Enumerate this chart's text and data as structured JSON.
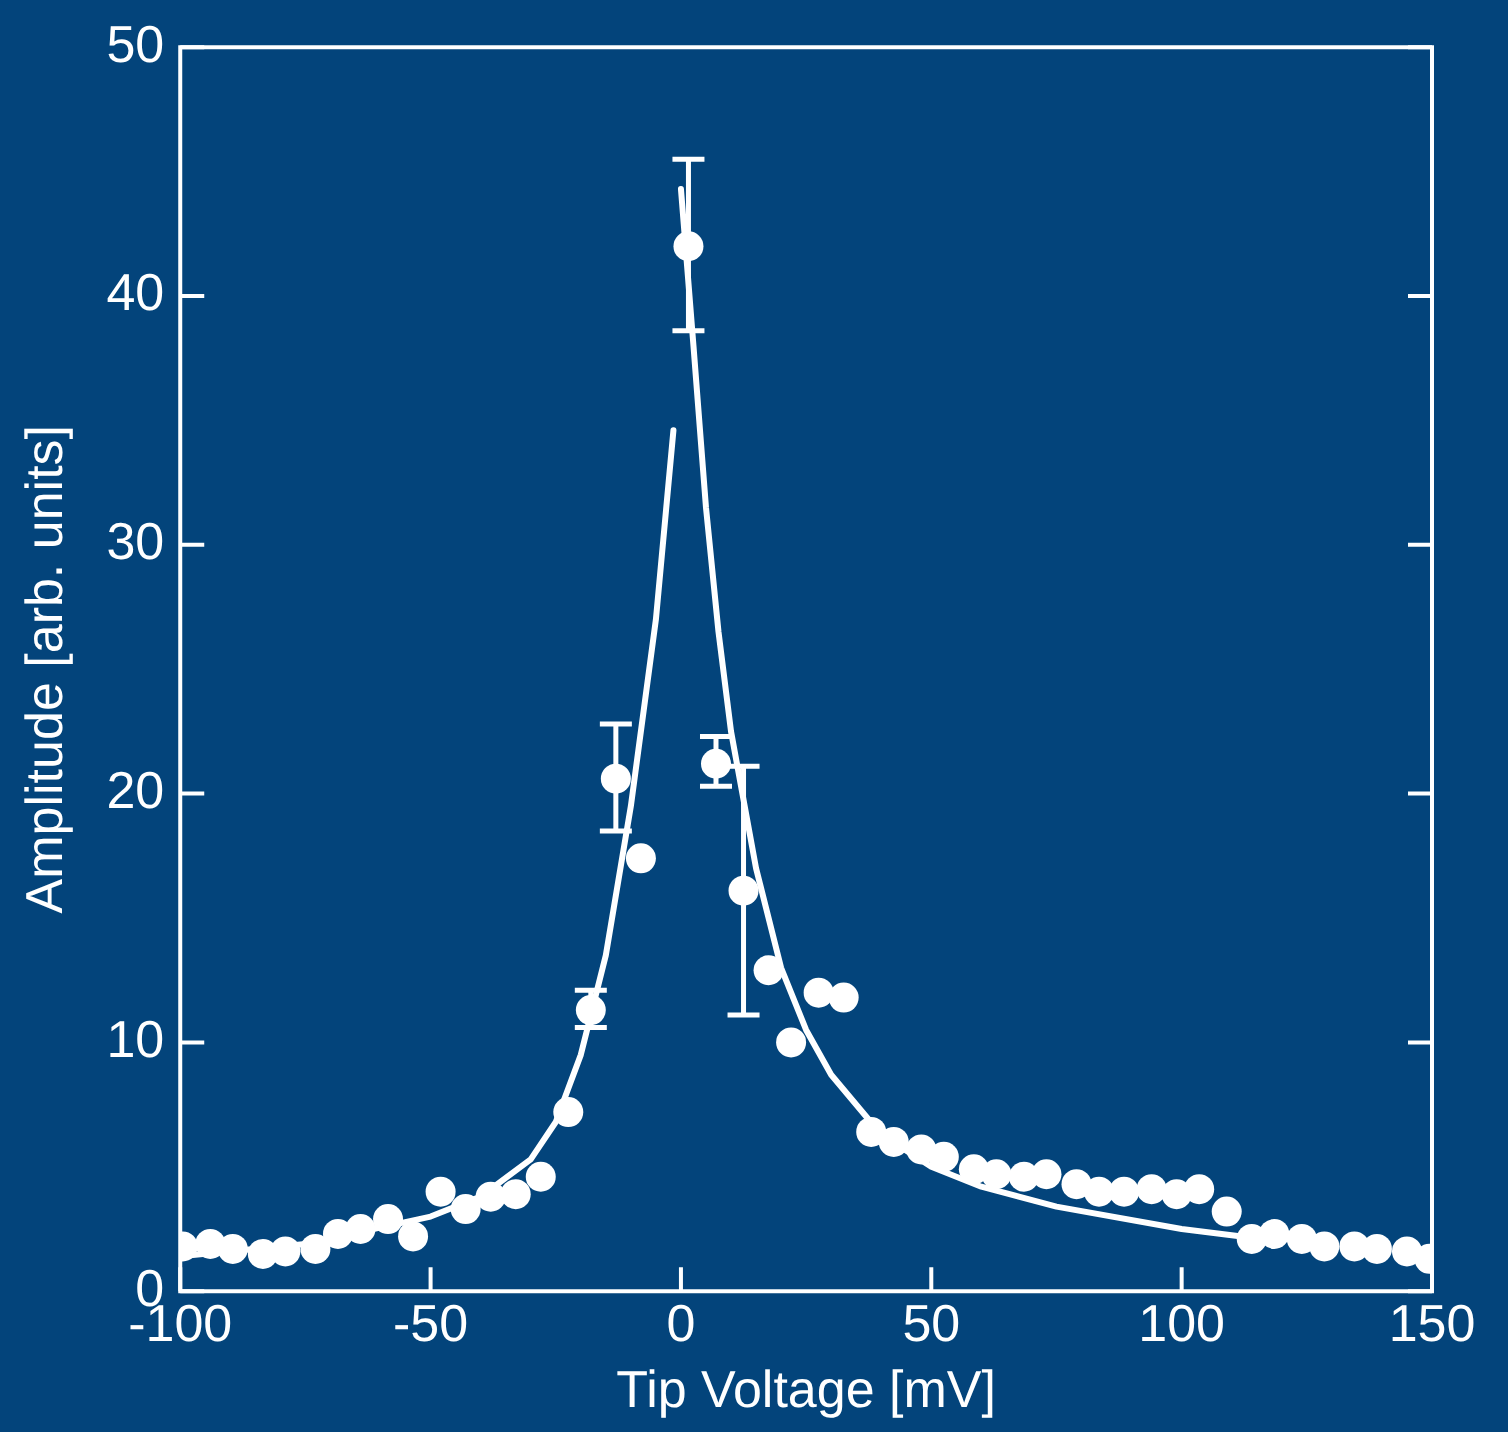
{
  "chart_data": {
    "type": "scatter",
    "xlabel": "Tip Voltage [mV]",
    "ylabel": "Amplitude [arb. units]",
    "xlim": [
      -100,
      150
    ],
    "xticks": [
      -100,
      -50,
      0,
      50,
      100,
      150
    ],
    "ylim": [
      0,
      50
    ],
    "yticks": [
      0,
      10,
      20,
      30,
      40,
      50
    ],
    "grid": false,
    "legend": false,
    "marker": "circle",
    "series": [
      {
        "color": "#ffffff",
        "x": [
          -99.5,
          -94,
          -89.5,
          -83.5,
          -79,
          -73,
          -68.5,
          -64,
          -58.5,
          -53.5,
          -48,
          -43,
          -38,
          -33,
          -28,
          -22.5,
          -18,
          -13,
          -8,
          1.5,
          7,
          12.5,
          17.5,
          22,
          27.5,
          32.5,
          38,
          42.5,
          48,
          52.5,
          58.5,
          63,
          68.5,
          73,
          79,
          83.5,
          88.5,
          94,
          99,
          103.5,
          109,
          114,
          118.5,
          124,
          128.5,
          134.5,
          139,
          145,
          149.5
        ],
        "values": [
          1.8,
          1.9,
          1.7,
          1.5,
          1.6,
          1.7,
          2.3,
          2.5,
          2.9,
          2.2,
          4.0,
          3.3,
          3.8,
          3.9,
          4.6,
          7.2,
          11.3,
          20.6,
          17.4,
          42.0,
          21.2,
          16.1,
          12.9,
          10.0,
          12.0,
          11.8,
          6.4,
          6.0,
          5.7,
          5.4,
          4.9,
          4.7,
          4.6,
          4.7,
          4.3,
          4.0,
          4.0,
          4.1,
          3.9,
          4.1,
          3.2,
          2.1,
          2.3,
          2.1,
          1.8,
          1.8,
          1.7,
          1.6,
          1.3
        ],
        "errors": [
          null,
          null,
          null,
          null,
          null,
          null,
          null,
          null,
          null,
          null,
          null,
          null,
          null,
          null,
          null,
          null,
          [
            10.6,
            12.1
          ],
          [
            18.5,
            22.8
          ],
          null,
          [
            38.6,
            45.5
          ],
          [
            20.3,
            22.3
          ],
          [
            11.1,
            21.1
          ],
          null,
          null,
          null,
          null,
          null,
          null,
          null,
          null,
          null,
          null,
          null,
          null,
          null,
          null,
          null,
          null,
          null,
          null,
          null,
          null,
          null,
          null,
          null,
          null,
          null,
          null,
          null
        ]
      },
      {
        "type": "line",
        "color": "#ffffff",
        "marker": "none",
        "x": [
          -100,
          -75,
          -50,
          -40,
          -30,
          -25,
          -20,
          -15,
          -10,
          -5,
          -1.5
        ],
        "values": [
          1.4,
          1.9,
          3.0,
          3.8,
          5.3,
          6.8,
          9.5,
          13.5,
          19.5,
          27,
          34.6
        ]
      },
      {
        "type": "line",
        "color": "#ffffff",
        "marker": "none",
        "x": [
          0,
          2.5,
          5,
          7.5,
          10,
          15,
          20,
          25,
          30,
          40,
          50,
          60,
          75,
          100,
          112
        ],
        "values": [
          44.3,
          38,
          31.5,
          26.5,
          22.5,
          17,
          13,
          10.5,
          8.7,
          6.3,
          5.0,
          4.2,
          3.4,
          2.5,
          2.2
        ]
      }
    ]
  }
}
